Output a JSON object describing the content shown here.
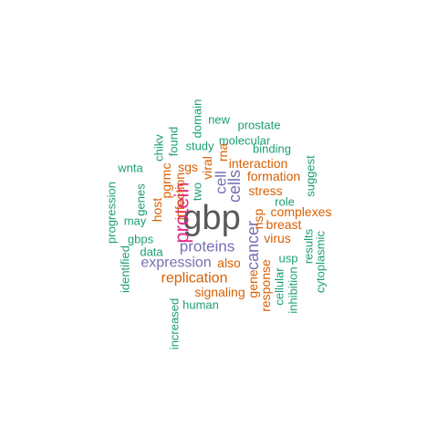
{
  "colors": {
    "dark_gray": "#595959",
    "magenta": "#e7298a",
    "purple": "#7570b3",
    "orange": "#d95f02",
    "teal": "#1b9e77"
  },
  "words": [
    {
      "text": "gbp",
      "color": "dark_gray",
      "rank": 1,
      "rotated": false
    },
    {
      "text": "protein",
      "color": "magenta",
      "rank": 2,
      "rotated": true
    },
    {
      "text": "proteins",
      "color": "purple",
      "rank": 2,
      "rotated": false
    },
    {
      "text": "cancer",
      "color": "purple",
      "rank": 2,
      "rotated": true
    },
    {
      "text": "cells",
      "color": "purple",
      "rank": 3,
      "rotated": true
    },
    {
      "text": "cell",
      "color": "purple",
      "rank": 3,
      "rotated": true
    },
    {
      "text": "expression",
      "color": "purple",
      "rank": 3,
      "rotated": false
    },
    {
      "text": "replication",
      "color": "orange",
      "rank": 3,
      "rotated": false
    },
    {
      "text": "signaling",
      "color": "orange",
      "rank": 4,
      "rotated": false
    },
    {
      "text": "also",
      "color": "orange",
      "rank": 4,
      "rotated": false
    },
    {
      "text": "interaction",
      "color": "orange",
      "rank": 4,
      "rotated": false
    },
    {
      "text": "formation",
      "color": "orange",
      "rank": 4,
      "rotated": false
    },
    {
      "text": "stress",
      "color": "orange",
      "rank": 4,
      "rotated": false
    },
    {
      "text": "complexes",
      "color": "orange",
      "rank": 4,
      "rotated": false
    },
    {
      "text": "breast",
      "color": "orange",
      "rank": 4,
      "rotated": false
    },
    {
      "text": "virus",
      "color": "orange",
      "rank": 4,
      "rotated": false
    },
    {
      "text": "sgs",
      "color": "orange",
      "rank": 4,
      "rotated": false
    },
    {
      "text": "viral",
      "color": "orange",
      "rank": 4,
      "rotated": true
    },
    {
      "text": "rna",
      "color": "orange",
      "rank": 4,
      "rotated": true
    },
    {
      "text": "host",
      "color": "orange",
      "rank": 4,
      "rotated": true
    },
    {
      "text": "pgrmc",
      "color": "orange",
      "rank": 4,
      "rotated": true
    },
    {
      "text": "infection",
      "color": "orange",
      "rank": 4,
      "rotated": true
    },
    {
      "text": "gene",
      "color": "orange",
      "rank": 4,
      "rotated": true
    },
    {
      "text": "response",
      "color": "orange",
      "rank": 4,
      "rotated": true
    },
    {
      "text": "nsp",
      "color": "orange",
      "rank": 4,
      "rotated": true
    },
    {
      "text": "two",
      "color": "teal",
      "rank": 5,
      "rotated": true
    },
    {
      "text": "new",
      "color": "teal",
      "rank": 5,
      "rotated": false
    },
    {
      "text": "prostate",
      "color": "teal",
      "rank": 5,
      "rotated": false
    },
    {
      "text": "molecular",
      "color": "teal",
      "rank": 5,
      "rotated": false
    },
    {
      "text": "binding",
      "color": "teal",
      "rank": 5,
      "rotated": false
    },
    {
      "text": "study",
      "color": "teal",
      "rank": 5,
      "rotated": false
    },
    {
      "text": "domain",
      "color": "teal",
      "rank": 5,
      "rotated": true
    },
    {
      "text": "found",
      "color": "teal",
      "rank": 5,
      "rotated": true
    },
    {
      "text": "chikv",
      "color": "teal",
      "rank": 5,
      "rotated": true
    },
    {
      "text": "wnta",
      "color": "teal",
      "rank": 5,
      "rotated": false
    },
    {
      "text": "genes",
      "color": "teal",
      "rank": 5,
      "rotated": true
    },
    {
      "text": "may",
      "color": "teal",
      "rank": 5,
      "rotated": false
    },
    {
      "text": "progression",
      "color": "teal",
      "rank": 5,
      "rotated": true
    },
    {
      "text": "gbps",
      "color": "teal",
      "rank": 5,
      "rotated": false
    },
    {
      "text": "data",
      "color": "teal",
      "rank": 5,
      "rotated": false
    },
    {
      "text": "identified",
      "color": "teal",
      "rank": 5,
      "rotated": true
    },
    {
      "text": "increased",
      "color": "teal",
      "rank": 5,
      "rotated": true
    },
    {
      "text": "human",
      "color": "teal",
      "rank": 5,
      "rotated": false
    },
    {
      "text": "role",
      "color": "teal",
      "rank": 5,
      "rotated": false
    },
    {
      "text": "suggest",
      "color": "teal",
      "rank": 5,
      "rotated": true
    },
    {
      "text": "results",
      "color": "teal",
      "rank": 5,
      "rotated": true
    },
    {
      "text": "cytoplasmic",
      "color": "teal",
      "rank": 5,
      "rotated": true
    },
    {
      "text": "usp",
      "color": "teal",
      "rank": 5,
      "rotated": false
    },
    {
      "text": "cellular",
      "color": "teal",
      "rank": 5,
      "rotated": true
    },
    {
      "text": "inhibition",
      "color": "teal",
      "rank": 5,
      "rotated": true
    }
  ]
}
